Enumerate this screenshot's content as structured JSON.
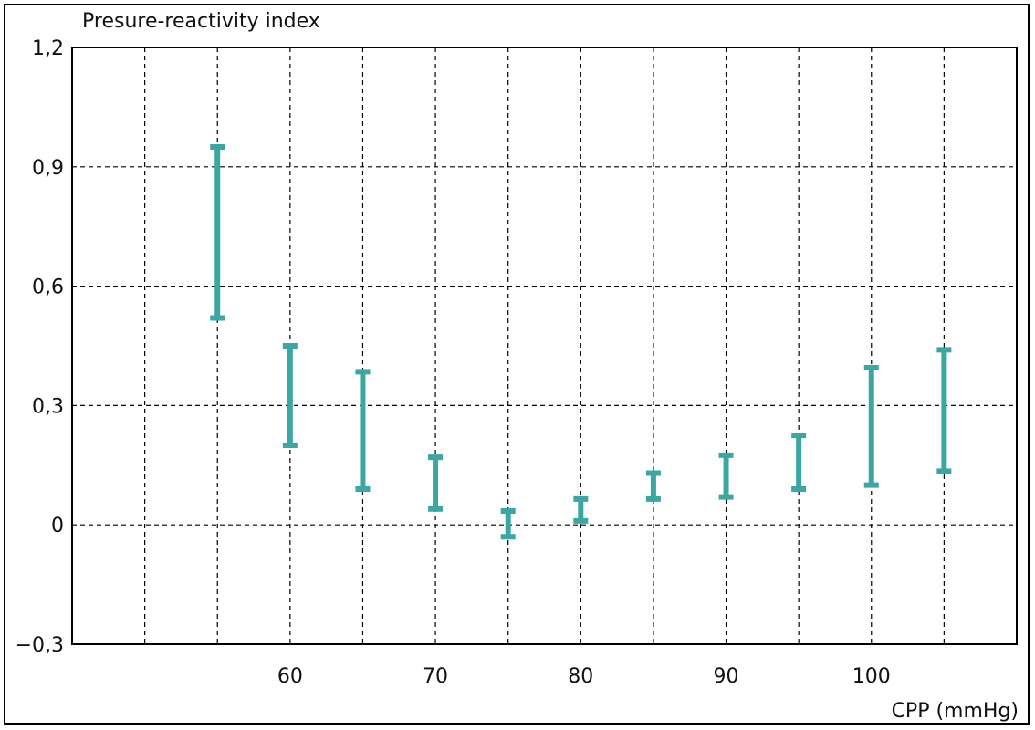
{
  "chart_data": {
    "type": "errorbar",
    "ylabel": "Presure-reactivity index",
    "xlabel": "CPP (mmHg)",
    "xlim": [
      45,
      110
    ],
    "ylim": [
      -0.3,
      1.2
    ],
    "x_ticks": [
      60,
      70,
      80,
      90,
      100
    ],
    "x_tick_labels": [
      "60",
      "70",
      "80",
      "90",
      "100"
    ],
    "x_grid": [
      50,
      55,
      60,
      65,
      70,
      75,
      80,
      85,
      90,
      95,
      100,
      105,
      110
    ],
    "y_ticks": [
      -0.3,
      0,
      0.3,
      0.6,
      0.9,
      1.2
    ],
    "y_tick_labels": [
      "−0,3",
      "0",
      "0,3",
      "0,6",
      "0,9",
      "1,2"
    ],
    "grid": true,
    "color": "#3aa7a3",
    "series": [
      {
        "x": [
          55,
          60,
          65,
          70,
          75,
          80,
          85,
          90,
          95,
          100,
          105
        ],
        "low": [
          0.52,
          0.2,
          0.09,
          0.04,
          -0.03,
          0.01,
          0.065,
          0.07,
          0.09,
          0.1,
          0.135
        ],
        "high": [
          0.95,
          0.45,
          0.385,
          0.17,
          0.035,
          0.065,
          0.13,
          0.175,
          0.225,
          0.395,
          0.44
        ]
      }
    ]
  }
}
